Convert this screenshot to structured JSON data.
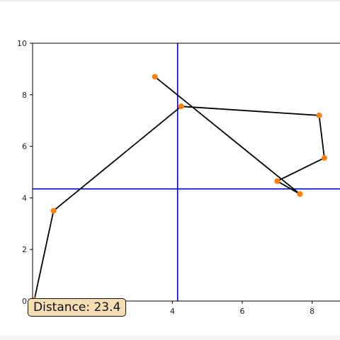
{
  "chart_data": {
    "type": "line",
    "title": "",
    "xlabel": "",
    "ylabel": "",
    "xlim": [
      0,
      9
    ],
    "ylim": [
      0,
      10
    ],
    "x_ticks": [
      "4",
      "6",
      "8"
    ],
    "x_tick_values": [
      4,
      6,
      8
    ],
    "y_ticks": [
      "0",
      "2",
      "4",
      "6",
      "8",
      "10"
    ],
    "y_tick_values": [
      0,
      2,
      4,
      6,
      8,
      10
    ],
    "grid": false,
    "points": [
      {
        "x": 0.05,
        "y": 0.05
      },
      {
        "x": 0.6,
        "y": 3.5
      },
      {
        "x": 4.25,
        "y": 7.55
      },
      {
        "x": 8.2,
        "y": 7.2
      },
      {
        "x": 8.35,
        "y": 5.55
      },
      {
        "x": 7.0,
        "y": 4.65
      },
      {
        "x": 7.65,
        "y": 4.15
      },
      {
        "x": 3.5,
        "y": 8.7
      }
    ],
    "crosshair": {
      "x": 4.15,
      "y": 4.35
    },
    "colors": {
      "path": "#000000",
      "marker": "#ff7f0e",
      "crosshair": "#0000cc"
    }
  },
  "distance_label": "Distance: 23.4"
}
